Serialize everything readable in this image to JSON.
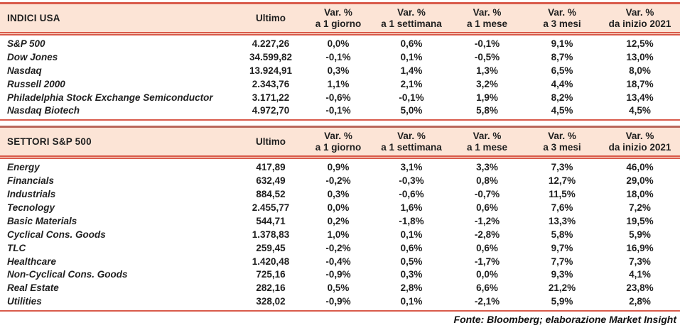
{
  "colors": {
    "band": "#fce4d6",
    "line": "#d95b4b",
    "line-dark": "#b9675b",
    "text": "#1f1f1f"
  },
  "columns": {
    "ultimo": "Ultimo",
    "vars": [
      {
        "line1": "Var. %",
        "line2": "a 1 giorno"
      },
      {
        "line1": "Var. %",
        "line2": "a 1 settimana"
      },
      {
        "line1": "Var. %",
        "line2": "a 1 mese"
      },
      {
        "line1": "Var. %",
        "line2": "a 3 mesi"
      },
      {
        "line1": "Var. %",
        "line2": "da inizio 2021"
      }
    ]
  },
  "tables": [
    {
      "title": "INDICI USA",
      "rows": [
        {
          "name": "S&P 500",
          "ultimo": "4.227,26",
          "vars": [
            "0,0%",
            "0,6%",
            "-0,1%",
            "9,1%",
            "12,5%"
          ]
        },
        {
          "name": "Dow Jones",
          "ultimo": "34.599,82",
          "vars": [
            "-0,1%",
            "0,1%",
            "-0,5%",
            "8,7%",
            "13,0%"
          ]
        },
        {
          "name": "Nasdaq",
          "ultimo": "13.924,91",
          "vars": [
            "0,3%",
            "1,4%",
            "1,3%",
            "6,5%",
            "8,0%"
          ]
        },
        {
          "name": "Russell 2000",
          "ultimo": "2.343,76",
          "vars": [
            "1,1%",
            "2,1%",
            "3,2%",
            "4,4%",
            "18,7%"
          ]
        },
        {
          "name": "Philadelphia Stock Exchange Semiconductor",
          "ultimo": "3.171,22",
          "vars": [
            "-0,6%",
            "-0,1%",
            "1,9%",
            "8,2%",
            "13,4%"
          ]
        },
        {
          "name": "Nasdaq Biotech",
          "ultimo": "4.972,70",
          "vars": [
            "-0,1%",
            "5,0%",
            "5,8%",
            "4,5%",
            "4,5%"
          ]
        }
      ]
    },
    {
      "title": "SETTORI S&P 500",
      "rows": [
        {
          "name": "Energy",
          "ultimo": "417,89",
          "vars": [
            "0,9%",
            "3,1%",
            "3,3%",
            "7,3%",
            "46,0%"
          ]
        },
        {
          "name": "Financials",
          "ultimo": "632,49",
          "vars": [
            "-0,2%",
            "-0,3%",
            "0,8%",
            "12,7%",
            "29,0%"
          ]
        },
        {
          "name": "Industrials",
          "ultimo": "884,52",
          "vars": [
            "0,3%",
            "-0,6%",
            "-0,7%",
            "11,5%",
            "18,0%"
          ]
        },
        {
          "name": "Tecnology",
          "ultimo": "2.455,77",
          "vars": [
            "0,0%",
            "1,6%",
            "0,6%",
            "7,6%",
            "7,2%"
          ]
        },
        {
          "name": "Basic Materials",
          "ultimo": "544,71",
          "vars": [
            "0,2%",
            "-1,8%",
            "-1,2%",
            "13,3%",
            "19,5%"
          ]
        },
        {
          "name": "Cyclical Cons. Goods",
          "ultimo": "1.378,83",
          "vars": [
            "1,0%",
            "0,1%",
            "-2,8%",
            "5,8%",
            "5,9%"
          ]
        },
        {
          "name": "TLC",
          "ultimo": "259,45",
          "vars": [
            "-0,2%",
            "0,6%",
            "0,6%",
            "9,7%",
            "16,9%"
          ]
        },
        {
          "name": "Healthcare",
          "ultimo": "1.420,48",
          "vars": [
            "-0,4%",
            "0,5%",
            "-1,7%",
            "7,7%",
            "7,3%"
          ]
        },
        {
          "name": "Non-Cyclical Cons. Goods",
          "ultimo": "725,16",
          "vars": [
            "-0,9%",
            "0,3%",
            "0,0%",
            "9,3%",
            "4,1%"
          ]
        },
        {
          "name": "Real Estate",
          "ultimo": "282,16",
          "vars": [
            "0,5%",
            "2,8%",
            "6,6%",
            "21,2%",
            "23,8%"
          ]
        },
        {
          "name": "Utilities",
          "ultimo": "328,02",
          "vars": [
            "-0,9%",
            "0,1%",
            "-2,1%",
            "5,9%",
            "2,8%"
          ]
        }
      ]
    }
  ],
  "footer": "Fonte: Bloomberg; elaborazione Market Insight"
}
